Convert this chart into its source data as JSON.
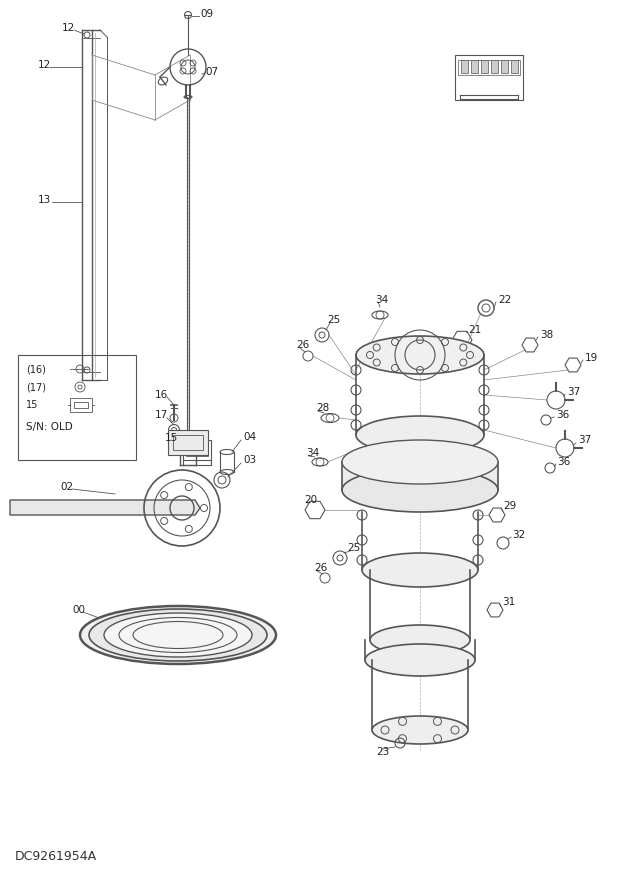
{
  "bg_color": "#ffffff",
  "lc": "#555555",
  "lc_dark": "#333333",
  "tc": "#222222",
  "figsize": [
    6.2,
    8.73
  ],
  "dpi": 100,
  "watermark": "DC9261954A"
}
